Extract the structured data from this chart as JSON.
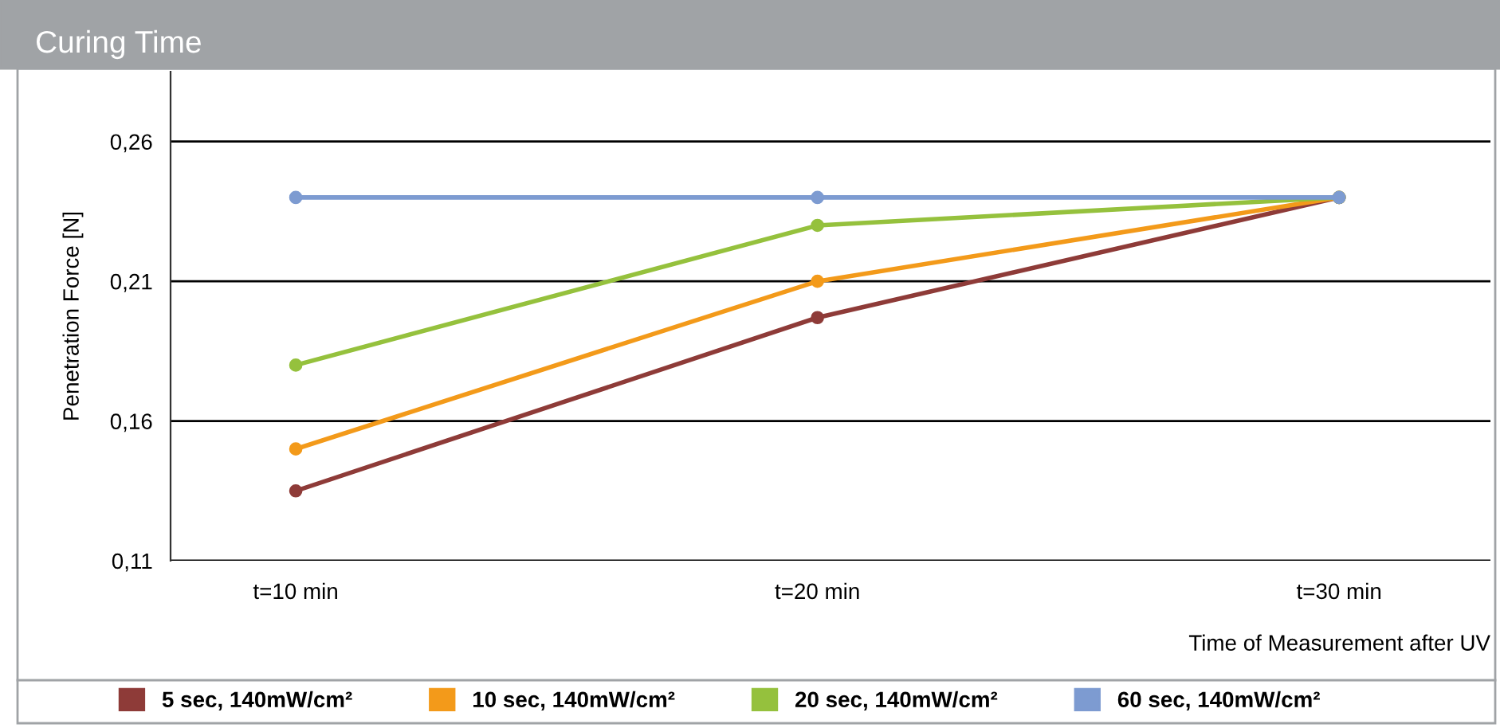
{
  "chart_data": {
    "type": "line",
    "title": "Curing Time",
    "xlabel": "Time of Measurement after UV",
    "ylabel": "Penetration Force [N]",
    "categories": [
      "t=10 min",
      "t=20 min",
      "t=30 min"
    ],
    "series": [
      {
        "name": "5 sec, 140mW/cm²",
        "color": "#8e3b38",
        "values": [
          0.135,
          0.197,
          0.24
        ]
      },
      {
        "name": "10 sec, 140mW/cm²",
        "color": "#f39a1a",
        "values": [
          0.15,
          0.21,
          0.24
        ]
      },
      {
        "name": "20 sec, 140mW/cm²",
        "color": "#95c13d",
        "values": [
          0.18,
          0.23,
          0.24
        ]
      },
      {
        "name": "60 sec, 140mW/cm²",
        "color": "#7d9bd1",
        "values": [
          0.24,
          0.24,
          0.24
        ]
      }
    ],
    "ylim": [
      0.11,
      0.285
    ],
    "yticks": [
      {
        "value": 0.11,
        "label": "0,11"
      },
      {
        "value": 0.16,
        "label": "0,16"
      },
      {
        "value": 0.21,
        "label": "0,21"
      },
      {
        "value": 0.26,
        "label": "0,26"
      }
    ],
    "grid": "y",
    "legend": "bottom",
    "marker": "circle",
    "line_style": "solid"
  }
}
